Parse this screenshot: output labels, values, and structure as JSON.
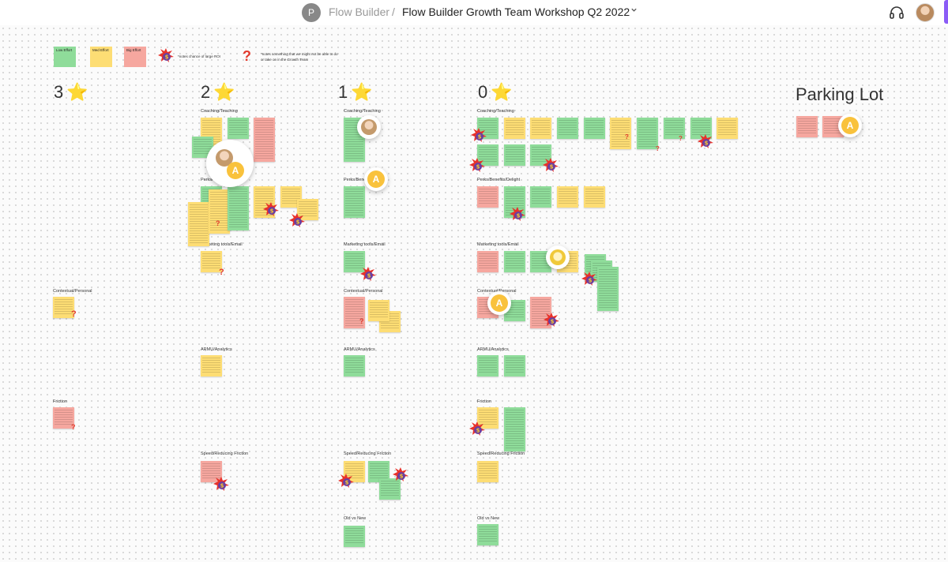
{
  "header": {
    "project_initial": "P",
    "app_name": "Flow Builder",
    "separator": "/",
    "board_title": "Flow Builder Growth Team Workshop Q2 2022",
    "chevron": "chevron-down-icon",
    "audio_icon": "headphones-icon"
  },
  "colors": {
    "low_effort": "#8fdc9a",
    "med_effort": "#fddd74",
    "big_effort": "#f6a79f",
    "question_mark": "#e23b2e",
    "star": "#f4c430",
    "presence_accent": "#8b5cf6"
  },
  "legend": {
    "low": "Low Effort",
    "med": "Med Effort",
    "big": "Big Effort",
    "roi_note": "*notes chance of large ROI",
    "question_note_1": "*notes something that we might not be able to do",
    "question_note_2": "or take on in the Growth Team"
  },
  "columns": [
    {
      "rank": "3",
      "star": "⭐"
    },
    {
      "rank": "2",
      "star": "⭐"
    },
    {
      "rank": "1",
      "star": "⭐"
    },
    {
      "rank": "0",
      "star": "⭐"
    }
  ],
  "parking_lot": "Parking Lot",
  "sections": {
    "coaching": "Coaching/Teaching",
    "perks2": "Perks/",
    "perks1": "Perks/Bene",
    "perks0": "Perks/Benefits/Delight",
    "marketing": "Marketing tools/Email",
    "contextual": "Contextual/Personal",
    "arm": "ARMU/Analytics",
    "friction": "Friction",
    "speed": "Speed/Reducing Friction",
    "oldnew": "Old vs New"
  },
  "cursors": {
    "anon_letter": "A"
  }
}
